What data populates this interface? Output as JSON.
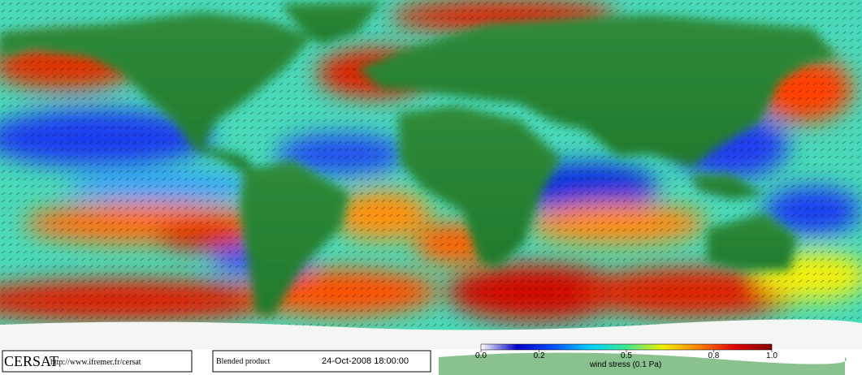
{
  "footer": {
    "logo": "CERSAT",
    "url": "http://www.ifremer.fr/cersat",
    "product": "Blended product",
    "date": "24-Oct-2008 18:00:00"
  },
  "colorbar": {
    "label": "wind stress (0.1 Pa)",
    "ticks": [
      {
        "value": 0,
        "label": "0.0"
      },
      0.2,
      0.5,
      0.8,
      {
        "value": 1,
        "label": "1.0"
      }
    ],
    "colors": [
      "#ffffff",
      "#0000c8",
      "#0050ff",
      "#00d0ff",
      "#40e890",
      "#f0f000",
      "#ff8000",
      "#e00000",
      "#800000"
    ]
  }
}
